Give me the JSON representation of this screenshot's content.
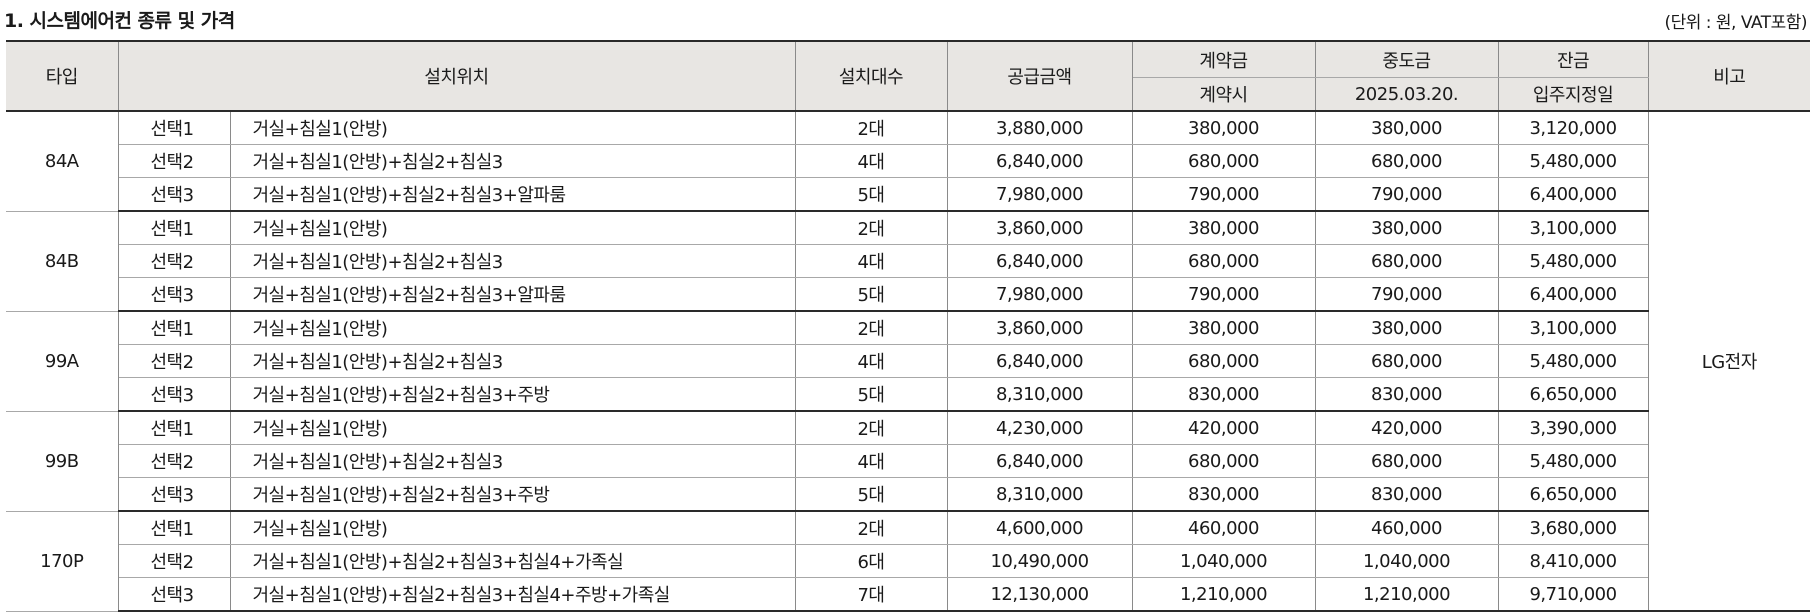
{
  "title": "1. 시스템에어컨 종류 및 가격",
  "unit_note": "(단위 : 원, VAT포함)",
  "headers": {
    "type": "타입",
    "location": "설치위치",
    "count": "설치대수",
    "supply": "공급금액",
    "deposit": "계약금",
    "deposit_when": "계약시",
    "middle": "중도금",
    "middle_when": "2025.03.20.",
    "balance": "잔금",
    "balance_when": "입주지정일",
    "note": "비고"
  },
  "note_value": "LG전자",
  "groups": [
    {
      "type": "84A",
      "rows": [
        {
          "option": "선택1",
          "location": "거실+침실1(안방)",
          "count": "2대",
          "supply": "3,880,000",
          "deposit": "380,000",
          "middle": "380,000",
          "balance": "3,120,000"
        },
        {
          "option": "선택2",
          "location": "거실+침실1(안방)+침실2+침실3",
          "count": "4대",
          "supply": "6,840,000",
          "deposit": "680,000",
          "middle": "680,000",
          "balance": "5,480,000"
        },
        {
          "option": "선택3",
          "location": "거실+침실1(안방)+침실2+침실3+알파룸",
          "count": "5대",
          "supply": "7,980,000",
          "deposit": "790,000",
          "middle": "790,000",
          "balance": "6,400,000"
        }
      ]
    },
    {
      "type": "84B",
      "rows": [
        {
          "option": "선택1",
          "location": "거실+침실1(안방)",
          "count": "2대",
          "supply": "3,860,000",
          "deposit": "380,000",
          "middle": "380,000",
          "balance": "3,100,000"
        },
        {
          "option": "선택2",
          "location": "거실+침실1(안방)+침실2+침실3",
          "count": "4대",
          "supply": "6,840,000",
          "deposit": "680,000",
          "middle": "680,000",
          "balance": "5,480,000"
        },
        {
          "option": "선택3",
          "location": "거실+침실1(안방)+침실2+침실3+알파룸",
          "count": "5대",
          "supply": "7,980,000",
          "deposit": "790,000",
          "middle": "790,000",
          "balance": "6,400,000"
        }
      ]
    },
    {
      "type": "99A",
      "rows": [
        {
          "option": "선택1",
          "location": "거실+침실1(안방)",
          "count": "2대",
          "supply": "3,860,000",
          "deposit": "380,000",
          "middle": "380,000",
          "balance": "3,100,000"
        },
        {
          "option": "선택2",
          "location": "거실+침실1(안방)+침실2+침실3",
          "count": "4대",
          "supply": "6,840,000",
          "deposit": "680,000",
          "middle": "680,000",
          "balance": "5,480,000"
        },
        {
          "option": "선택3",
          "location": "거실+침실1(안방)+침실2+침실3+주방",
          "count": "5대",
          "supply": "8,310,000",
          "deposit": "830,000",
          "middle": "830,000",
          "balance": "6,650,000"
        }
      ]
    },
    {
      "type": "99B",
      "rows": [
        {
          "option": "선택1",
          "location": "거실+침실1(안방)",
          "count": "2대",
          "supply": "4,230,000",
          "deposit": "420,000",
          "middle": "420,000",
          "balance": "3,390,000"
        },
        {
          "option": "선택2",
          "location": "거실+침실1(안방)+침실2+침실3",
          "count": "4대",
          "supply": "6,840,000",
          "deposit": "680,000",
          "middle": "680,000",
          "balance": "5,480,000"
        },
        {
          "option": "선택3",
          "location": "거실+침실1(안방)+침실2+침실3+주방",
          "count": "5대",
          "supply": "8,310,000",
          "deposit": "830,000",
          "middle": "830,000",
          "balance": "6,650,000"
        }
      ]
    },
    {
      "type": "170P",
      "rows": [
        {
          "option": "선택1",
          "location": "거실+침실1(안방)",
          "count": "2대",
          "supply": "4,600,000",
          "deposit": "460,000",
          "middle": "460,000",
          "balance": "3,680,000"
        },
        {
          "option": "선택2",
          "location": "거실+침실1(안방)+침실2+침실3+침실4+가족실",
          "count": "6대",
          "supply": "10,490,000",
          "deposit": "1,040,000",
          "middle": "1,040,000",
          "balance": "8,410,000"
        },
        {
          "option": "선택3",
          "location": "거실+침실1(안방)+침실2+침실3+침실4+주방+가족실",
          "count": "7대",
          "supply": "12,130,000",
          "deposit": "1,210,000",
          "middle": "1,210,000",
          "balance": "9,710,000"
        }
      ]
    }
  ]
}
